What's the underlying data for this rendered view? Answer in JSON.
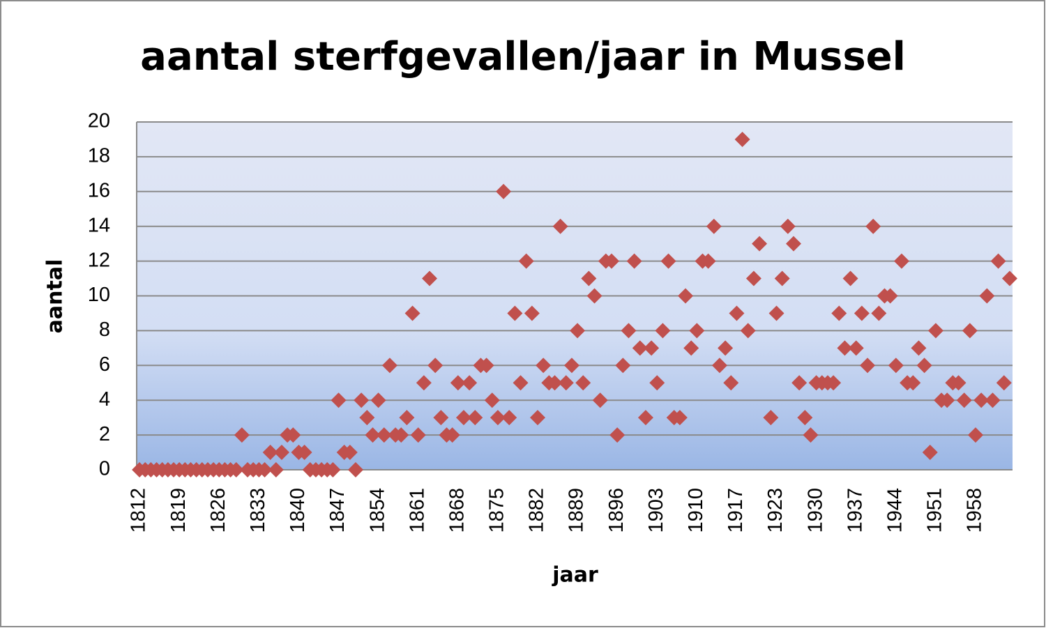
{
  "chart_data": {
    "type": "line",
    "marker": "diamond",
    "title": "aantal sterfgevallen/jaar in Mussel",
    "x_label": "jaar",
    "y_label": "aantal",
    "color": "#c0504d",
    "grid": true,
    "ylim": [
      0,
      20
    ],
    "yticks": [
      0,
      2,
      4,
      6,
      8,
      10,
      12,
      14,
      16,
      18,
      20
    ],
    "categories": [
      "1812",
      null,
      null,
      null,
      null,
      null,
      null,
      "1819",
      null,
      null,
      null,
      null,
      null,
      null,
      "1826",
      null,
      null,
      null,
      null,
      null,
      null,
      "1833",
      null,
      null,
      null,
      null,
      null,
      null,
      "1840",
      null,
      null,
      null,
      null,
      null,
      null,
      "1847",
      null,
      null,
      null,
      null,
      null,
      null,
      "1854",
      null,
      null,
      null,
      null,
      null,
      null,
      "1861",
      null,
      null,
      null,
      null,
      null,
      null,
      "1868",
      null,
      null,
      null,
      null,
      null,
      null,
      "1875",
      null,
      null,
      null,
      null,
      null,
      null,
      "1882",
      null,
      null,
      null,
      null,
      null,
      null,
      "1889",
      null,
      null,
      null,
      null,
      null,
      null,
      "1896",
      null,
      null,
      null,
      null,
      null,
      null,
      "1903",
      null,
      null,
      null,
      null,
      null,
      null,
      "1910",
      null,
      null,
      null,
      null,
      null,
      null,
      "1917",
      null,
      null,
      null,
      null,
      null,
      null,
      "1923",
      null,
      null,
      null,
      null,
      null,
      null,
      "1930",
      null,
      null,
      null,
      null,
      null,
      null,
      "1937",
      null,
      null,
      null,
      null,
      null,
      null,
      "1944",
      null,
      null,
      null,
      null,
      null,
      null,
      "1951",
      null,
      null,
      null,
      null,
      null,
      null,
      "1958",
      null,
      null,
      null,
      null,
      null,
      null
    ],
    "values": [
      0,
      0,
      0,
      0,
      0,
      0,
      0,
      0,
      0,
      0,
      0,
      0,
      0,
      0,
      0,
      0,
      0,
      0,
      2,
      0,
      0,
      0,
      0,
      1,
      0,
      1,
      2,
      2,
      1,
      1,
      0,
      0,
      0,
      0,
      0,
      4,
      1,
      1,
      0,
      4,
      3,
      2,
      4,
      2,
      6,
      2,
      2,
      3,
      9,
      2,
      5,
      11,
      6,
      3,
      2,
      2,
      5,
      3,
      5,
      3,
      6,
      6,
      4,
      3,
      16,
      3,
      9,
      5,
      12,
      9,
      3,
      6,
      5,
      5,
      14,
      5,
      6,
      8,
      5,
      11,
      10,
      4,
      12,
      12,
      2,
      6,
      8,
      12,
      7,
      3,
      7,
      5,
      8,
      12,
      3,
      3,
      10,
      7,
      8,
      12,
      12,
      14,
      6,
      7,
      5,
      9,
      19,
      8,
      11,
      13,
      null,
      3,
      9,
      11,
      14,
      13,
      5,
      3,
      2,
      5,
      5,
      5,
      5,
      9,
      7,
      11,
      7,
      9,
      6,
      14,
      9,
      10,
      10,
      6,
      12,
      5,
      5,
      7,
      6,
      1,
      8,
      4,
      4,
      5,
      5,
      4,
      8,
      2,
      4,
      10,
      4,
      12,
      5,
      11
    ]
  }
}
